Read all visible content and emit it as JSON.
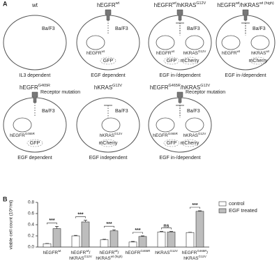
{
  "panel_a": {
    "label": "A",
    "cells": [
      {
        "title": [
          [
            "wt"
          ]
        ],
        "cell_line": "Ba/F3",
        "genes": [],
        "reporters": [],
        "phenotype": "IL3 dependent"
      },
      {
        "title": [
          [
            "hEGFR",
            "wt"
          ]
        ],
        "cell_line": "Ba/F3",
        "genes": [
          [
            [
              "hEGFR",
              "wt"
            ]
          ]
        ],
        "reporters": [
          "GFP"
        ],
        "phenotype": "EGF dependent"
      },
      {
        "title": [
          [
            "hEGFR",
            "wt"
          ],
          [
            "/hKRAS",
            "G12V"
          ]
        ],
        "cell_line": "Ba/F3",
        "genes": [
          [
            [
              "hEGFR",
              "wt"
            ]
          ],
          [
            [
              "hKRAS",
              "G12V"
            ]
          ]
        ],
        "reporters": [
          "GFP",
          "mCherry"
        ],
        "phenotype": "EGF in-/dependent"
      },
      {
        "title": [
          [
            "hEGFR",
            "wt"
          ],
          [
            "/hKRAS",
            "wt (high)"
          ]
        ],
        "cell_line": "Ba/F3",
        "genes": [
          [
            [
              "hEGFR",
              "wt"
            ]
          ],
          [
            [
              "hKRAS",
              "wt"
            ]
          ]
        ],
        "reporters": [
          "mCherry"
        ],
        "phenotype": "EGF in-/dependent"
      },
      {
        "title": [
          [
            "hEGFR",
            "G465R"
          ]
        ],
        "mutation": "Receptor mutation",
        "cell_line": "Ba/F3",
        "genes": [
          [
            [
              "hEGFR",
              "G465R"
            ]
          ]
        ],
        "reporters": [
          "GFP"
        ],
        "phenotype": "EGF dependent"
      },
      {
        "title": [
          [
            "hKRAS",
            "G12V"
          ]
        ],
        "cell_line": "Ba/F3",
        "genes": [
          [
            [
              "hKRAS",
              "G12V"
            ]
          ]
        ],
        "reporters": [
          "mCherry"
        ],
        "phenotype": "EGF independent"
      },
      {
        "title": [
          [
            "hEGFR",
            "G465R"
          ],
          [
            "/hKRAS",
            "G12V"
          ]
        ],
        "mutation": "Receptor mutation",
        "cell_line": "Ba/F3",
        "genes": [
          [
            [
              "hEGFR",
              "G465R"
            ]
          ],
          [
            [
              "hKRAS",
              "G12V"
            ]
          ]
        ],
        "reporters": [
          "GFP",
          "mCherry"
        ],
        "phenotype": "EGF in-/dependent"
      }
    ]
  },
  "chart_data": {
    "type": "bar",
    "label": "B",
    "y_label": "viable cell count (10⁶/ml)",
    "categories": [
      [
        [
          [
            "hEGFR",
            "wt"
          ]
        ]
      ],
      [
        [
          [
            "hEGFR",
            "wt"
          ],
          [
            "/"
          ]
        ],
        [
          [
            "hKRAS",
            "G12V"
          ]
        ]
      ],
      [
        [
          [
            "hEGFR",
            "wt"
          ],
          [
            "/"
          ]
        ],
        [
          [
            "hKRAS",
            "wt (high)"
          ]
        ]
      ],
      [
        [
          [
            "hEGFR",
            "G465R"
          ]
        ]
      ],
      [
        [
          [
            "hKRAS",
            "G12V"
          ]
        ]
      ],
      [
        [
          [
            "hEGFR",
            "G465R"
          ],
          [
            "/"
          ]
        ],
        [
          [
            "hKRAS",
            "G12V"
          ]
        ]
      ]
    ],
    "series": [
      {
        "name": "control",
        "color": "#ffffff",
        "values": [
          0.06,
          0.2,
          0.13,
          0.09,
          0.27,
          0.26
        ],
        "errors": [
          0.005,
          0.01,
          0.01,
          0.01,
          0.01,
          0.005
        ]
      },
      {
        "name": "EGF treated",
        "color": "#bdbdbd",
        "values": [
          0.33,
          0.45,
          0.29,
          0.19,
          0.27,
          0.64
        ],
        "errors": [
          0.04,
          0.03,
          0.02,
          0.01,
          0.01,
          0.01
        ]
      }
    ],
    "significance": [
      "***",
      "***",
      "***",
      "***",
      "ns",
      "***"
    ],
    "ylim": [
      0,
      0.8
    ],
    "yticks": [
      {
        "value": 0,
        "label": "0.0"
      },
      0.2,
      0.4,
      0.6,
      0.8
    ],
    "legend": "top-right"
  }
}
